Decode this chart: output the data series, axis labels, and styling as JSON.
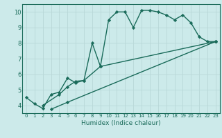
{
  "line1_x": [
    0,
    1,
    2,
    3,
    4,
    5,
    6,
    7,
    8,
    9,
    10,
    11,
    12,
    13,
    14,
    15,
    16,
    17,
    18,
    19,
    20,
    21,
    22,
    23
  ],
  "line1_y": [
    4.5,
    4.1,
    3.8,
    4.7,
    4.85,
    5.75,
    5.45,
    5.6,
    8.0,
    6.5,
    9.5,
    10.0,
    10.0,
    9.0,
    10.1,
    10.1,
    10.0,
    9.8,
    9.5,
    9.8,
    9.3,
    8.4,
    8.1,
    8.1
  ],
  "line2_x": [
    2,
    4,
    5,
    6,
    7,
    9,
    23
  ],
  "line2_y": [
    4.0,
    4.7,
    5.2,
    5.55,
    5.6,
    6.5,
    8.1
  ],
  "line3_x": [
    3,
    5,
    23
  ],
  "line3_y": [
    3.75,
    4.2,
    8.1
  ],
  "color": "#1a6b5a",
  "bg_color": "#cceaea",
  "grid_color": "#b8d8d8",
  "xlabel": "Humidex (Indice chaleur)",
  "xlim": [
    -0.5,
    23.5
  ],
  "ylim": [
    3.5,
    10.5
  ],
  "yticks": [
    4,
    5,
    6,
    7,
    8,
    9,
    10
  ],
  "xticks": [
    0,
    1,
    2,
    3,
    4,
    5,
    6,
    7,
    8,
    9,
    10,
    11,
    12,
    13,
    14,
    15,
    16,
    17,
    18,
    19,
    20,
    21,
    22,
    23
  ],
  "marker": "D",
  "markersize": 2.2,
  "linewidth": 1.0,
  "xlabel_fontsize": 6.5,
  "tick_fontsize_x": 5.0,
  "tick_fontsize_y": 6.0
}
